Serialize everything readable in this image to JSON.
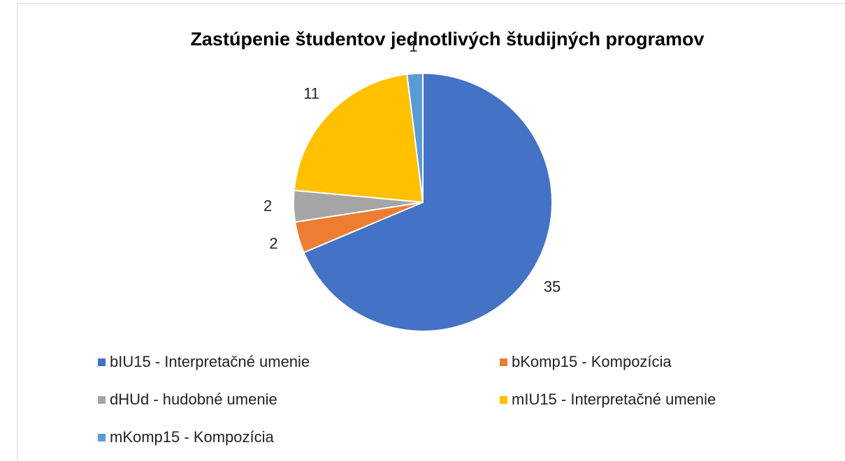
{
  "chart_data": {
    "type": "pie",
    "title": "Zastúpenie študentov jednotlivých študijných programov",
    "categories": [
      "bIU15 - Interpretačné umenie",
      "bKomp15 - Kompozícia",
      "dHUd - hudobné umenie",
      "mIU15 - Interpretačné umenie",
      "mKomp15 - Kompozícia"
    ],
    "values": [
      35,
      2,
      2,
      11,
      1
    ],
    "colors": [
      "#4472c4",
      "#ed7d31",
      "#a5a5a5",
      "#ffc000",
      "#5b9bd5"
    ],
    "legend": "bottom"
  }
}
